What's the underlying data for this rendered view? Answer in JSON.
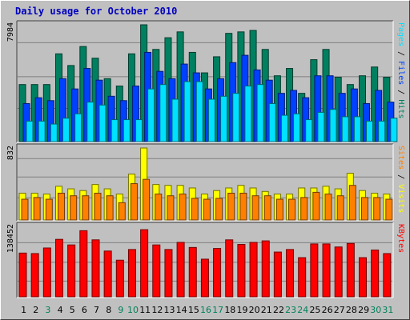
{
  "chart_data": {
    "type": "bar",
    "title": "Daily usage for October 2010",
    "categories": [
      "1",
      "2",
      "3",
      "4",
      "5",
      "6",
      "7",
      "8",
      "9",
      "10",
      "11",
      "12",
      "13",
      "14",
      "15",
      "16",
      "17",
      "18",
      "19",
      "20",
      "21",
      "22",
      "23",
      "24",
      "25",
      "26",
      "27",
      "28",
      "29",
      "30",
      "31"
    ],
    "weekend_days": [
      "3",
      "9",
      "10",
      "16",
      "17",
      "23",
      "24",
      "30",
      "31"
    ],
    "panels": [
      {
        "id": "hits",
        "ymax_label": "7984",
        "ymax": 7984,
        "right_label": [
          {
            "text": "Pages",
            "color": "#00e0ff"
          },
          {
            "text": " / ",
            "color": "#000000"
          },
          {
            "text": "Files",
            "color": "#0040ff"
          },
          {
            "text": " / ",
            "color": "#000000"
          },
          {
            "text": "Hits",
            "color": "#008060"
          }
        ],
        "series": [
          {
            "name": "Hits",
            "color": "#008060",
            "values": [
              3900,
              3900,
              3900,
              6000,
              5200,
              6500,
              5700,
              4300,
              3800,
              6000,
              7984,
              6300,
              7100,
              7500,
              6100,
              4700,
              5800,
              7400,
              7500,
              7600,
              6300,
              4500,
              5000,
              3300,
              5600,
              6300,
              4400,
              3900,
              4500,
              5100,
              4400
            ]
          },
          {
            "name": "Files",
            "color": "#0040ff",
            "values": [
              2600,
              3000,
              2800,
              4300,
              3600,
              5000,
              4200,
              3100,
              2800,
              3800,
              6100,
              4800,
              4300,
              5300,
              4700,
              3600,
              4300,
              5400,
              5900,
              4900,
              4200,
              3300,
              3500,
              3000,
              4500,
              4500,
              3300,
              3600,
              2600,
              3500,
              2700
            ]
          },
          {
            "name": "Pages",
            "color": "#00e0ff",
            "values": [
              1400,
              1400,
              1200,
              1600,
              1900,
              2700,
              2500,
              1500,
              1500,
              1500,
              3600,
              3900,
              2900,
              4100,
              4100,
              2900,
              3100,
              3300,
              3800,
              3900,
              2600,
              1800,
              1900,
              1500,
              2000,
              2200,
              1700,
              1700,
              1400,
              1400,
              1600
            ]
          }
        ]
      },
      {
        "id": "visits",
        "ymax_label": "832",
        "ymax": 832,
        "right_label": [
          {
            "text": "Sites",
            "color": "#ff8000"
          },
          {
            "text": " / ",
            "color": "#000000"
          },
          {
            "text": "Visits",
            "color": "#ffff00"
          }
        ],
        "series": [
          {
            "name": "Visits",
            "color": "#ffff00",
            "values": [
              310,
              310,
              300,
              390,
              360,
              340,
              410,
              360,
              300,
              530,
              832,
              410,
              400,
              400,
              370,
              300,
              340,
              370,
              400,
              370,
              330,
              300,
              300,
              370,
              370,
              390,
              360,
              540,
              340,
              310,
              300
            ]
          },
          {
            "name": "Sites",
            "color": "#ff8000",
            "values": [
              240,
              260,
              240,
              310,
              280,
              280,
              310,
              280,
              200,
              420,
              470,
              300,
              280,
              300,
              250,
              240,
              250,
              310,
              310,
              280,
              280,
              240,
              240,
              260,
              320,
              300,
              280,
              400,
              260,
              260,
              240
            ]
          }
        ]
      },
      {
        "id": "kbytes",
        "ymax_label": "138452",
        "ymax": 138452,
        "right_label": [
          {
            "text": "KBytes",
            "color": "#ff0000"
          }
        ],
        "series": [
          {
            "name": "KBytes",
            "color": "#ff0000",
            "values": [
              86000,
              85000,
              96000,
              113000,
              102000,
              130000,
              112000,
              90000,
              72000,
              93000,
              132000,
              102000,
              93000,
              107000,
              97000,
              74000,
              95000,
              112000,
              103000,
              107000,
              110000,
              88000,
              93000,
              77000,
              104000,
              104000,
              98000,
              105000,
              77000,
              92000,
              85000
            ]
          }
        ]
      }
    ]
  }
}
